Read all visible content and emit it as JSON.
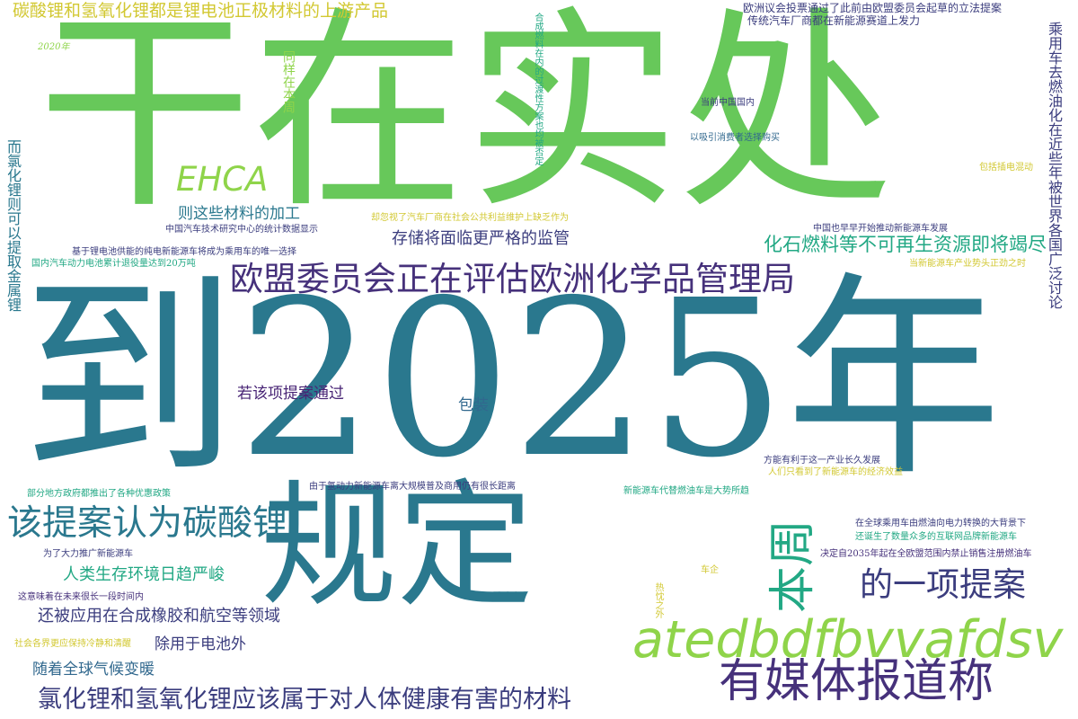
{
  "colors": {
    "green": "#67c85a",
    "lime": "#8fd44a",
    "teal": "#2a788e",
    "navy": "#3b3d7e",
    "purple": "#46317b",
    "seagreen": "#22a884",
    "blue": "#31688e",
    "yellow": "#d2c832",
    "darkpurple": "#482475"
  },
  "words": [
    "干在实处",
    "到2025年",
    "规定",
    "欧盟委员会正在评估欧洲化学品管理局",
    "atedbdfbvvafdsv",
    "有媒体报道称",
    "该提案认为碳酸锂",
    "本周",
    "的一项提案",
    "氯化锂和氢氧化锂应该属于对人体健康有害的材料",
    "碳酸锂和氢氧化锂都是锂电池正极材料的上游产品",
    "EHCA",
    "化石燃料等不可再生资源即将竭尽",
    "存储将面临更严格的监管",
    "则这些材料的加工",
    "若该项提案通过",
    "包装",
    "还被应用在合成橡胶和航空等领域",
    "人类生存环境日趋严峻",
    "除用于电池外",
    "随着全球气候变暖",
    "欧洲议会投票通过了此前由欧盟委员会起草的立法提案",
    "传统汽车厂商都在新能源赛道上发力",
    "当前中国国内",
    "以吸引消费者选择购买",
    "中国也早早开始推动新能源车发展",
    "当新能源车产业势头正劲之时",
    "包括插电混动",
    "中国汽车技术研究中心的统计数据显示",
    "基于锂电池供能的纯电新能源车将成为乘用车的唯一选择",
    "国内汽车动力电池累计退役量达到20万吨",
    "却忽视了汽车厂商在社会公共利益维护上缺乏作为",
    "2020年",
    "同样在本周",
    "合成燃料在内的过渡性方案也均被否定",
    "乘用车去燃油化在近些年被世界各国广泛讨论",
    "而氯化锂则可以提取金属锂",
    "方能有利于这一产业长久发展",
    "人们只看到了新能源车的经济效益",
    "由于氢动力新能源车离大规模普及商用仍有很长距离",
    "新能源车代替燃油车是大势所趋",
    "部分地方政府都推出了各种优惠政策",
    "在全球乘用车由燃油向电力转换的大背景下",
    "还诞生了数量众多的互联网品牌新能源车",
    "为了大力推广新能源车",
    "决定自2035年起在全欧盟范围内禁止销售注册燃油车",
    "这意味着在未来很长一段时间内",
    "车企",
    "社会各界更应保持冷静和清醒",
    "热忱之外"
  ]
}
